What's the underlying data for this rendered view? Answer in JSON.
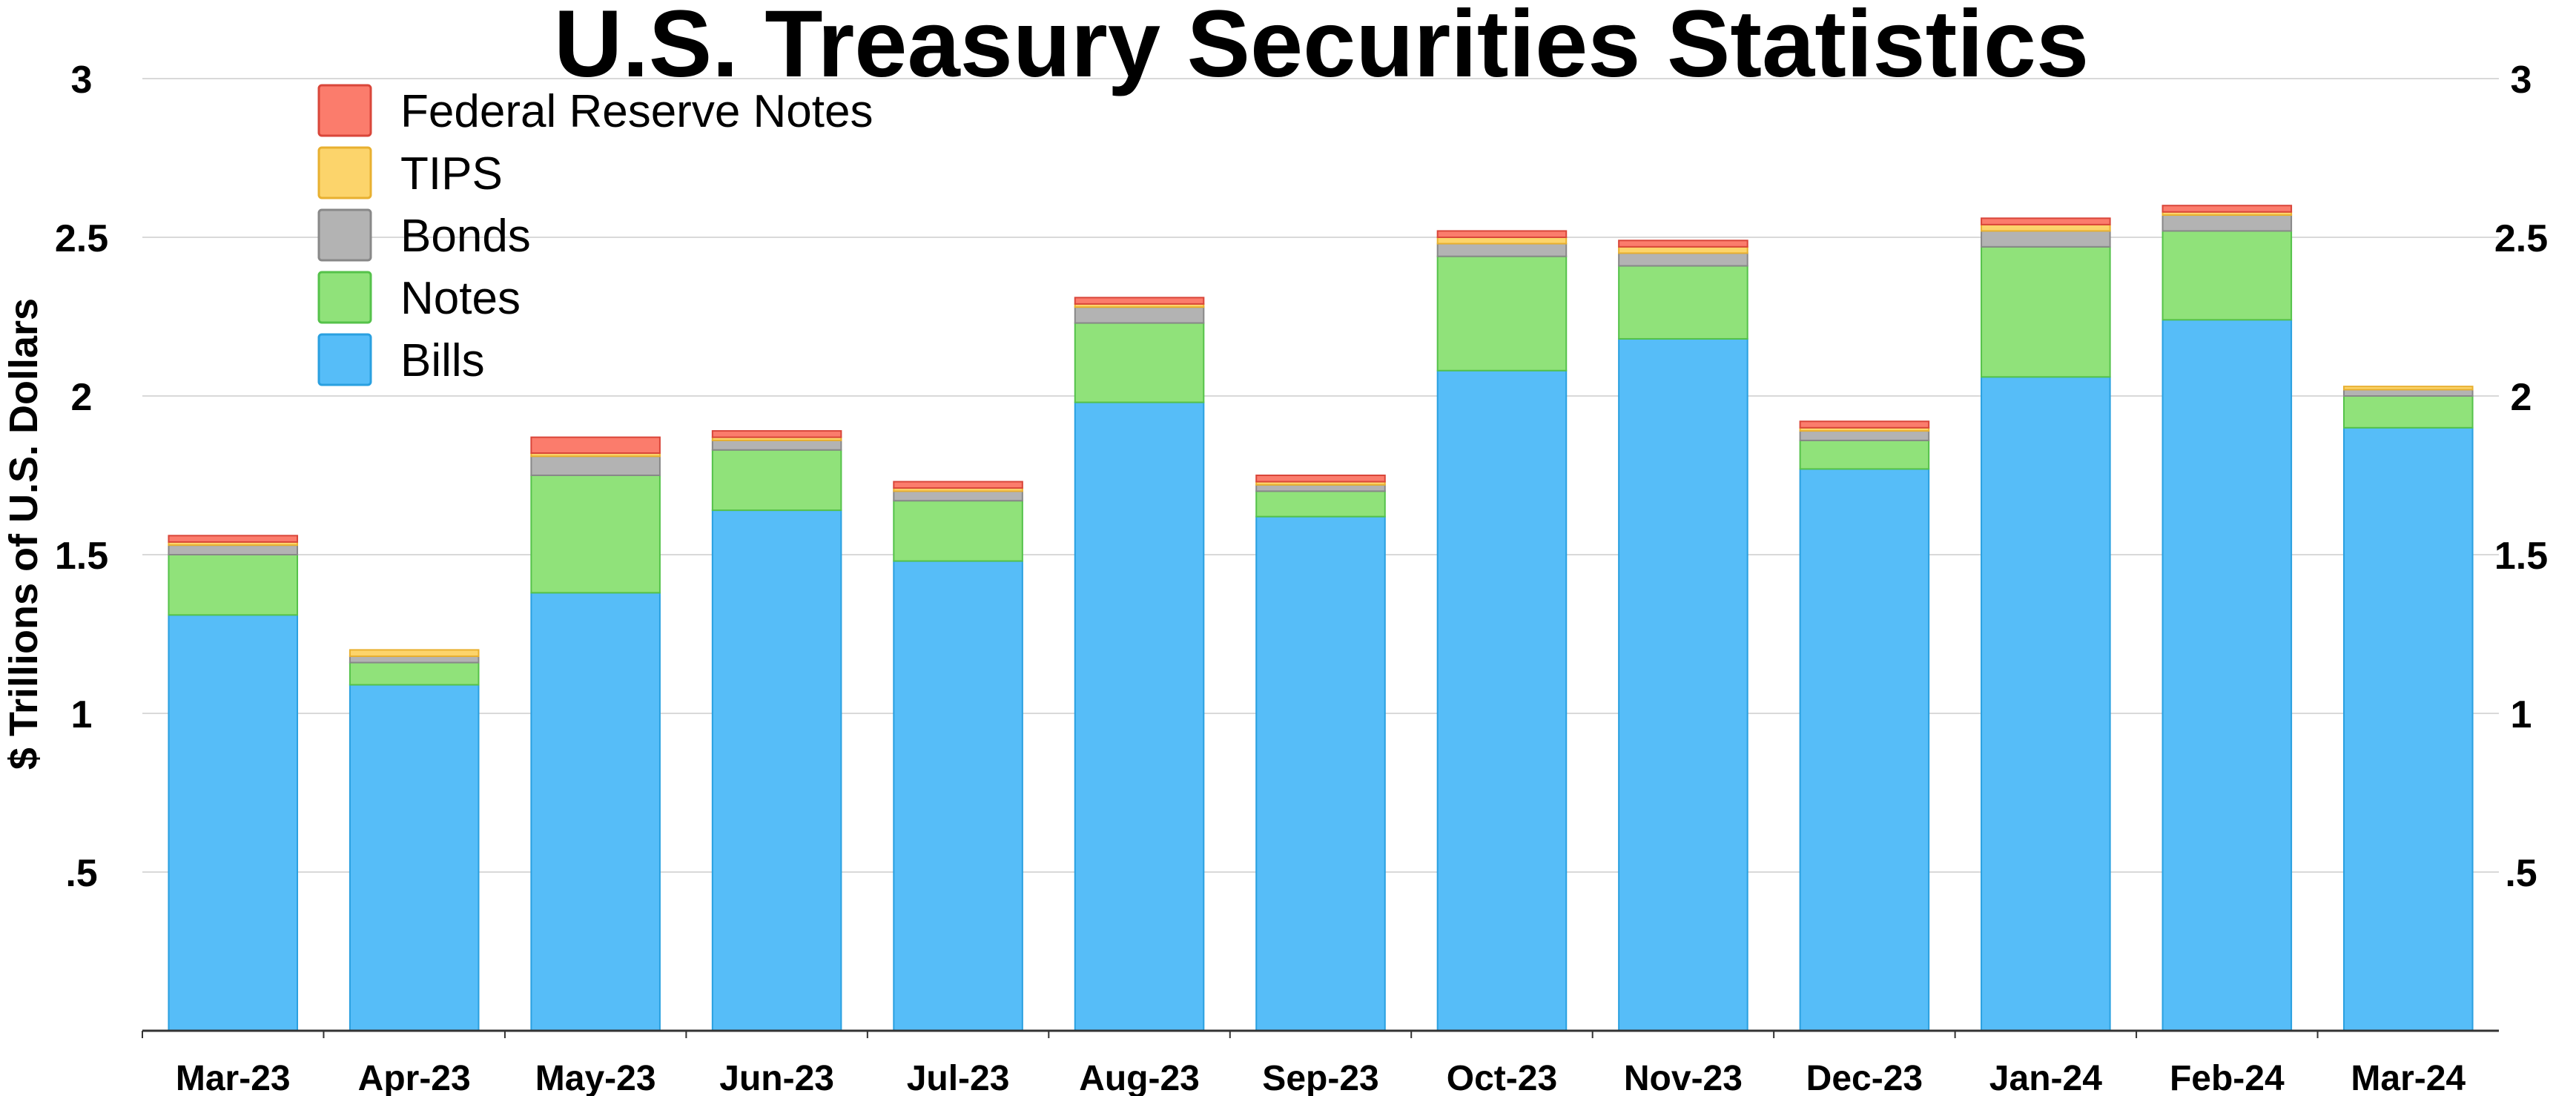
{
  "chart_data": {
    "type": "bar",
    "stacked": true,
    "title": "U.S. Treasury Securities Statistics",
    "ylabel": "$ Trillions of U.S. Dollars",
    "xlabel": "",
    "ylim": [
      0,
      3
    ],
    "yticks": [
      ".5",
      "1",
      "1.5",
      "2",
      "2.5",
      "3"
    ],
    "ytick_values": [
      0.5,
      1,
      1.5,
      2,
      2.5,
      3
    ],
    "grid": true,
    "legend_position": "top-left",
    "categories": [
      "Mar-23",
      "Apr-23",
      "May-23",
      "Jun-23",
      "Jul-23",
      "Aug-23",
      "Sep-23",
      "Oct-23",
      "Nov-23",
      "Dec-23",
      "Jan-24",
      "Feb-24",
      "Mar-24"
    ],
    "series": [
      {
        "name": "Bills",
        "color": "#56bdf8",
        "edge": "#2aa0e0",
        "values": [
          1.31,
          1.09,
          1.38,
          1.64,
          1.48,
          1.98,
          1.62,
          2.08,
          2.18,
          1.77,
          2.06,
          2.24,
          1.9
        ]
      },
      {
        "name": "Notes",
        "color": "#90e27a",
        "edge": "#55c24a",
        "values": [
          0.19,
          0.07,
          0.37,
          0.19,
          0.19,
          0.25,
          0.08,
          0.36,
          0.23,
          0.09,
          0.41,
          0.28,
          0.1
        ]
      },
      {
        "name": "Bonds",
        "color": "#b3b3b3",
        "edge": "#888888",
        "values": [
          0.03,
          0.02,
          0.06,
          0.03,
          0.03,
          0.05,
          0.02,
          0.04,
          0.04,
          0.03,
          0.05,
          0.05,
          0.02
        ]
      },
      {
        "name": "TIPS",
        "color": "#fcd46b",
        "edge": "#e8b030",
        "values": [
          0.01,
          0.02,
          0.01,
          0.01,
          0.01,
          0.01,
          0.01,
          0.02,
          0.02,
          0.01,
          0.02,
          0.01,
          0.01
        ]
      },
      {
        "name": "Federal Reserve Notes",
        "color": "#fb7c6c",
        "edge": "#d9463a",
        "values": [
          0.02,
          0.0,
          0.05,
          0.02,
          0.02,
          0.02,
          0.02,
          0.02,
          0.02,
          0.02,
          0.02,
          0.02,
          0.0
        ]
      }
    ],
    "legend_order": [
      "Federal Reserve Notes",
      "TIPS",
      "Bonds",
      "Notes",
      "Bills"
    ]
  }
}
